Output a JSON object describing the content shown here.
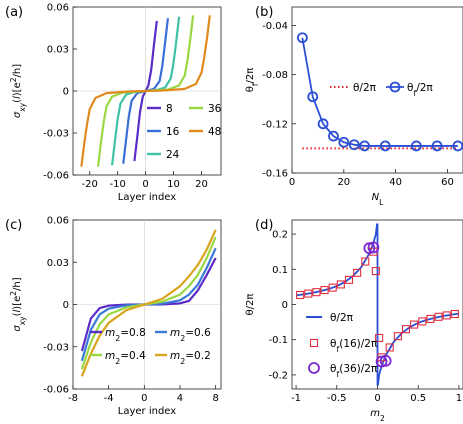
{
  "chart_data": [
    {
      "panel": "(a)",
      "type": "line",
      "xlabel": "Layer index",
      "ylabel": "σxy(l)[e²/h]",
      "xlim": [
        -26,
        27
      ],
      "ylim": [
        -0.06,
        0.06
      ],
      "xticks": [
        -20,
        -10,
        0,
        10,
        20
      ],
      "yticks": [
        0.06,
        0.03,
        0,
        -0.03,
        -0.06
      ],
      "ytick_labels": [
        "0.06",
        "0.03",
        "0",
        "-0.03",
        "-0.06"
      ],
      "legend": [
        "8",
        "16",
        "24",
        "36",
        "48"
      ],
      "series": [
        {
          "name": "8",
          "color": "#5b2cc9",
          "points": [
            [
              -4,
              -0.05
            ],
            [
              -3,
              -0.033
            ],
            [
              -2,
              -0.015
            ],
            [
              -1,
              -0.004
            ],
            [
              0,
              0
            ],
            [
              1,
              0.004
            ],
            [
              2,
              0.015
            ],
            [
              3,
              0.033
            ],
            [
              4,
              0.05
            ]
          ]
        },
        {
          "name": "16",
          "color": "#3a6fd8",
          "points": [
            [
              -8,
              -0.052
            ],
            [
              -7,
              -0.035
            ],
            [
              -6,
              -0.018
            ],
            [
              -5,
              -0.007
            ],
            [
              -3,
              -0.0015
            ],
            [
              0,
              0
            ],
            [
              3,
              0.0015
            ],
            [
              5,
              0.007
            ],
            [
              6,
              0.018
            ],
            [
              7,
              0.035
            ],
            [
              8,
              0.052
            ]
          ]
        },
        {
          "name": "24",
          "color": "#3fc1a5",
          "points": [
            [
              -12,
              -0.053
            ],
            [
              -11,
              -0.036
            ],
            [
              -10,
              -0.02
            ],
            [
              -9,
              -0.009
            ],
            [
              -7,
              -0.0025
            ],
            [
              -4,
              -0.0007
            ],
            [
              0,
              0
            ],
            [
              4,
              0.0007
            ],
            [
              7,
              0.0025
            ],
            [
              9,
              0.009
            ],
            [
              10,
              0.02
            ],
            [
              11,
              0.036
            ],
            [
              12,
              0.053
            ]
          ]
        },
        {
          "name": "36",
          "color": "#9ad842",
          "points": [
            [
              -17,
              -0.054
            ],
            [
              -16,
              -0.037
            ],
            [
              -15,
              -0.022
            ],
            [
              -14,
              -0.011
            ],
            [
              -12,
              -0.004
            ],
            [
              -8,
              -0.001
            ],
            [
              0,
              0
            ],
            [
              8,
              0.001
            ],
            [
              12,
              0.004
            ],
            [
              14,
              0.011
            ],
            [
              15,
              0.022
            ],
            [
              16,
              0.037
            ],
            [
              17,
              0.054
            ]
          ]
        },
        {
          "name": "48",
          "color": "#e08a1d",
          "points": [
            [
              -23,
              -0.054
            ],
            [
              -22,
              -0.038
            ],
            [
              -21,
              -0.024
            ],
            [
              -20,
              -0.013
            ],
            [
              -18,
              -0.005
            ],
            [
              -14,
              -0.0015
            ],
            [
              -6,
              -0.0003
            ],
            [
              0,
              0
            ],
            [
              6,
              0.0003
            ],
            [
              14,
              0.0015
            ],
            [
              18,
              0.005
            ],
            [
              20,
              0.013
            ],
            [
              21,
              0.024
            ],
            [
              22,
              0.038
            ],
            [
              23,
              0.054
            ]
          ]
        }
      ]
    },
    {
      "panel": "(b)",
      "type": "line",
      "xlabel": "NL",
      "ylabel": "θf/2π",
      "xlim": [
        0,
        66
      ],
      "ylim": [
        -0.16,
        -0.025
      ],
      "xticks": [
        0,
        20,
        40,
        60
      ],
      "yticks": [
        -0.04,
        -0.08,
        -0.12,
        -0.16
      ],
      "ytick_labels": [
        "-0.04",
        "-0.08",
        "-0.12",
        "-0.16"
      ],
      "legend": [
        "θ/2π",
        "θf/2π"
      ],
      "theta_line": {
        "name": "θ/2π",
        "value": -0.14,
        "color": "#e02020",
        "style": "dotted"
      },
      "series": [
        {
          "name": "θf/2π",
          "color": "#2a4fd4",
          "marker": "circle",
          "x": [
            4,
            8,
            12,
            16,
            20,
            24,
            28,
            36,
            48,
            56,
            64
          ],
          "y": [
            -0.05,
            -0.098,
            -0.12,
            -0.13,
            -0.135,
            -0.137,
            -0.138,
            -0.138,
            -0.138,
            -0.138,
            -0.138
          ]
        }
      ]
    },
    {
      "panel": "(c)",
      "type": "line",
      "xlabel": "Layer index",
      "ylabel": "σxy(l)[e²/h]",
      "xlim": [
        -8,
        8.6
      ],
      "ylim": [
        -0.06,
        0.06
      ],
      "xticks": [
        -8,
        -4,
        0,
        4,
        8
      ],
      "yticks": [
        0.06,
        0.03,
        0,
        -0.03,
        -0.06
      ],
      "ytick_labels": [
        "0.06",
        "0.03",
        "0",
        "-0.03",
        "-0.06"
      ],
      "legend": [
        "m2=0.8",
        "m2=0.6",
        "m2=0.4",
        "m2=0.2"
      ],
      "series": [
        {
          "name": "m2=0.8",
          "color": "#5b2cc9",
          "points": [
            [
              -7,
              -0.033
            ],
            [
              -6,
              -0.01
            ],
            [
              -5,
              -0.0025
            ],
            [
              -4,
              -0.0008
            ],
            [
              -2,
              -0.0001
            ],
            [
              0,
              0
            ],
            [
              2,
              0.0001
            ],
            [
              4,
              0.0008
            ],
            [
              5,
              0.0025
            ],
            [
              6,
              0.01
            ],
            [
              7,
              0.021
            ],
            [
              8,
              0.033
            ]
          ]
        },
        {
          "name": "m2=0.6",
          "color": "#3a7ad6",
          "points": [
            [
              -7,
              -0.04
            ],
            [
              -6,
              -0.018
            ],
            [
              -5,
              -0.007
            ],
            [
              -4,
              -0.003
            ],
            [
              -2,
              -0.0006
            ],
            [
              0,
              0
            ],
            [
              2,
              0.0006
            ],
            [
              4,
              0.003
            ],
            [
              5,
              0.007
            ],
            [
              6,
              0.014
            ],
            [
              7,
              0.026
            ],
            [
              8,
              0.04
            ]
          ]
        },
        {
          "name": "m2=0.4",
          "color": "#9ad842",
          "points": [
            [
              -7,
              -0.046
            ],
            [
              -6,
              -0.027
            ],
            [
              -5,
              -0.014
            ],
            [
              -4,
              -0.007
            ],
            [
              -2,
              -0.002
            ],
            [
              0,
              0
            ],
            [
              2,
              0.002
            ],
            [
              4,
              0.007
            ],
            [
              5,
              0.013
            ],
            [
              6,
              0.021
            ],
            [
              7,
              0.033
            ],
            [
              8,
              0.048
            ]
          ]
        },
        {
          "name": "m2=0.2",
          "color": "#d9a41e",
          "points": [
            [
              -7,
              -0.051
            ],
            [
              -6,
              -0.035
            ],
            [
              -5,
              -0.022
            ],
            [
              -4,
              -0.013
            ],
            [
              -2,
              -0.004
            ],
            [
              0,
              0
            ],
            [
              2,
              0.004
            ],
            [
              4,
              0.013
            ],
            [
              5,
              0.02
            ],
            [
              6,
              0.028
            ],
            [
              7,
              0.039
            ],
            [
              8,
              0.053
            ]
          ]
        }
      ]
    },
    {
      "panel": "(d)",
      "type": "line",
      "xlabel": "m2",
      "ylabel": "θ/2π",
      "xlim": [
        -1.05,
        1.05
      ],
      "ylim": [
        -0.24,
        0.24
      ],
      "xticks": [
        -1,
        -0.5,
        0,
        0.5,
        1
      ],
      "xtick_labels": [
        "-1",
        "-0.5",
        "0",
        "0.5",
        "1"
      ],
      "yticks": [
        0.2,
        0.1,
        0,
        -0.1,
        -0.2
      ],
      "ytick_labels": [
        "0.2",
        "0.1",
        "0",
        "-0.1",
        "-0.2"
      ],
      "legend": [
        "θ/2π",
        "θf(16)/2π",
        "θf(36)/2π"
      ],
      "series": [
        {
          "name": "θ/2π",
          "color": "#2a4fd4",
          "points": [
            [
              -1,
              0.026
            ],
            [
              -0.9,
              0.029
            ],
            [
              -0.8,
              0.033
            ],
            [
              -0.7,
              0.038
            ],
            [
              -0.6,
              0.044
            ],
            [
              -0.5,
              0.052
            ],
            [
              -0.4,
              0.064
            ],
            [
              -0.3,
              0.081
            ],
            [
              -0.2,
              0.106
            ],
            [
              -0.1,
              0.145
            ],
            [
              -0.05,
              0.175
            ],
            [
              -0.02,
              0.2
            ],
            [
              -0.005,
              0.23
            ]
          ],
          "points2": [
            [
              0.005,
              -0.23
            ],
            [
              0.02,
              -0.2
            ],
            [
              0.05,
              -0.175
            ],
            [
              0.1,
              -0.145
            ],
            [
              0.2,
              -0.106
            ],
            [
              0.3,
              -0.081
            ],
            [
              0.4,
              -0.064
            ],
            [
              0.5,
              -0.052
            ],
            [
              0.6,
              -0.044
            ],
            [
              0.7,
              -0.038
            ],
            [
              0.8,
              -0.033
            ],
            [
              0.9,
              -0.029
            ],
            [
              1,
              -0.026
            ]
          ]
        },
        {
          "name": "θf(16)/2π",
          "color": "#e03040",
          "marker": "square",
          "x": [
            -0.95,
            -0.85,
            -0.75,
            -0.65,
            -0.55,
            -0.45,
            -0.35,
            -0.25,
            -0.15,
            -0.05,
            -0.02,
            0.02,
            0.05,
            0.15,
            0.25,
            0.35,
            0.45,
            0.55,
            0.65,
            0.75,
            0.85,
            0.95
          ],
          "y": [
            0.027,
            0.031,
            0.035,
            0.041,
            0.048,
            0.057,
            0.07,
            0.09,
            0.122,
            0.15,
            0.095,
            -0.095,
            -0.15,
            -0.122,
            -0.09,
            -0.07,
            -0.057,
            -0.048,
            -0.041,
            -0.035,
            -0.031,
            -0.027
          ]
        },
        {
          "name": "θf(36)/2π",
          "color": "#7a28d0",
          "marker": "circle",
          "x": [
            -0.1,
            -0.05,
            0.05,
            0.1
          ],
          "y": [
            0.16,
            0.162,
            -0.162,
            -0.16
          ]
        }
      ]
    }
  ]
}
